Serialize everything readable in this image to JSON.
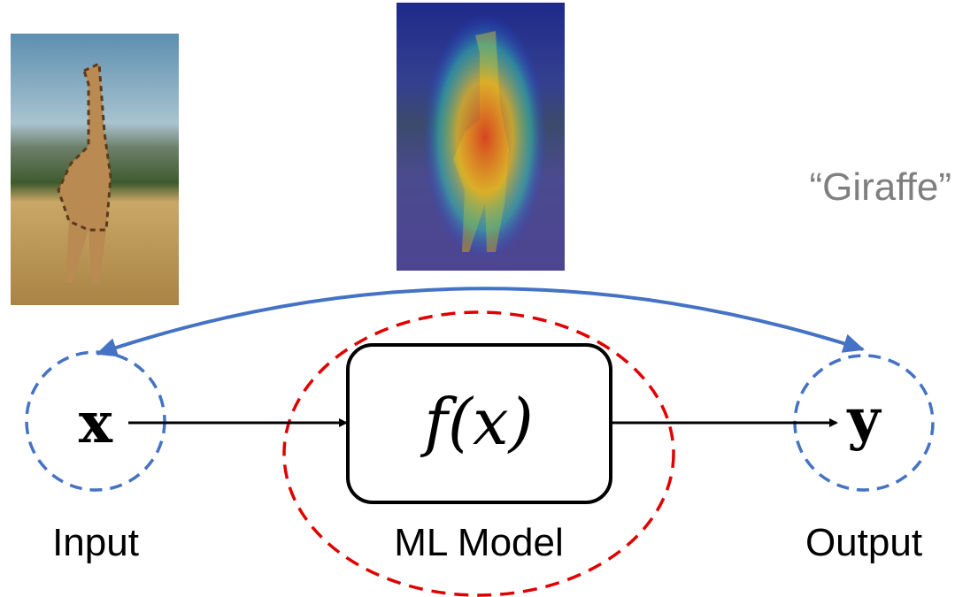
{
  "nodes": [
    {
      "symbol": "x",
      "label": "Input"
    },
    {
      "symbol": "f(x)",
      "label": "ML Model"
    },
    {
      "symbol": "y",
      "label": "Output"
    }
  ],
  "prediction": "“Giraffe”"
}
